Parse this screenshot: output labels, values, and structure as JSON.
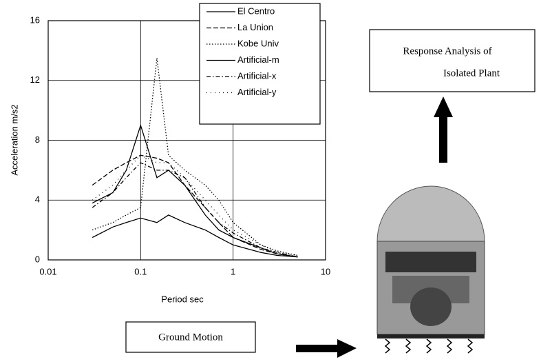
{
  "chart_data": {
    "type": "line",
    "xlabel": "Period  sec",
    "ylabel": "Acceleration  m/s2",
    "xscale": "log",
    "xlim": [
      0.01,
      10
    ],
    "xticks": [
      0.01,
      0.1,
      1,
      10
    ],
    "ylim": [
      0,
      16
    ],
    "yticks": [
      0,
      4,
      8,
      12,
      16
    ],
    "grid": true,
    "legend": "upper right",
    "x": [
      0.03,
      0.05,
      0.07,
      0.1,
      0.15,
      0.2,
      0.3,
      0.5,
      0.7,
      1,
      2,
      3,
      5
    ],
    "series": [
      {
        "name": "El Centro",
        "color": "#000000",
        "dash": "solid",
        "values": [
          3.8,
          4.5,
          6,
          9,
          5.5,
          6,
          5,
          3,
          2,
          1.5,
          0.8,
          0.4,
          0.2
        ]
      },
      {
        "name": "La Union",
        "color": "#000000",
        "dash": "dashed",
        "values": [
          5,
          6,
          6.5,
          7,
          6.8,
          6.5,
          5,
          3.5,
          2.5,
          1.5,
          0.7,
          0.4,
          0.2
        ]
      },
      {
        "name": "Kobe Univ",
        "color": "#000000",
        "dash": "dotted",
        "values": [
          2,
          2.5,
          3,
          3.5,
          13.5,
          7,
          6,
          5,
          4,
          2.5,
          1,
          0.6,
          0.3
        ]
      },
      {
        "name": "Artificial-m",
        "color": "#000000",
        "dash": "solid",
        "values": [
          1.5,
          2.2,
          2.5,
          2.8,
          2.5,
          3,
          2.5,
          2,
          1.5,
          1,
          0.5,
          0.3,
          0.2
        ]
      },
      {
        "name": "Artificial-x",
        "color": "#000000",
        "dash": "dashdot",
        "values": [
          3.5,
          4.5,
          5.5,
          6.5,
          6,
          6,
          5.5,
          3.5,
          2.5,
          1.8,
          0.8,
          0.5,
          0.2
        ]
      },
      {
        "name": "Artificial-y",
        "color": "#000000",
        "dash": "sparse",
        "values": [
          4,
          5,
          6,
          7,
          6.5,
          6.5,
          5.5,
          4,
          3,
          2,
          1,
          0.5,
          0.3
        ]
      }
    ]
  },
  "diagram": {
    "response_box": [
      "Response Analysis of",
      "Isolated Plant"
    ],
    "input_box": "Ground Motion"
  }
}
